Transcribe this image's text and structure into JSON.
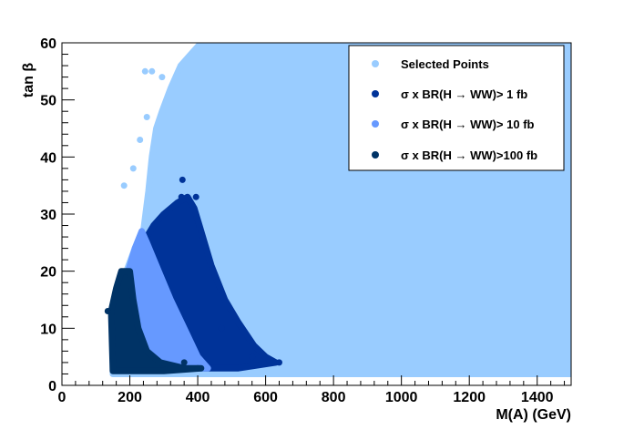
{
  "chart_data": {
    "type": "scatter",
    "xlabel": "M(A) (GeV)",
    "ylabel": "tan β",
    "xlim": [
      0,
      1500
    ],
    "ylim": [
      0,
      60
    ],
    "x_ticks": [
      "0",
      "200",
      "400",
      "600",
      "800",
      "1000",
      "1200",
      "1400"
    ],
    "y_ticks": [
      "0",
      "10",
      "20",
      "30",
      "40",
      "50",
      "60"
    ],
    "grid": false,
    "legend_position": "top-right",
    "series": [
      {
        "name": "Selected Points",
        "color": "#99ccff",
        "outline": [
          [
            150,
            13
          ],
          [
            165,
            18
          ],
          [
            190,
            20
          ],
          [
            215,
            24
          ],
          [
            240,
            27
          ],
          [
            255,
            34
          ],
          [
            265,
            40
          ],
          [
            278,
            45
          ],
          [
            295,
            48
          ],
          [
            320,
            52
          ],
          [
            350,
            56
          ],
          [
            380,
            58
          ],
          [
            410,
            60
          ],
          [
            1500,
            60
          ],
          [
            1500,
            2
          ],
          [
            150,
            2
          ]
        ],
        "extra_points": [
          [
            245,
            55
          ],
          [
            265,
            55
          ],
          [
            183,
            35
          ],
          [
            210,
            38
          ],
          [
            230,
            43
          ],
          [
            250,
            47
          ],
          [
            295,
            54
          ]
        ]
      },
      {
        "name": "σ x BR(H → WW)>  1 fb",
        "color": "#003399",
        "outline": [
          [
            240,
            25
          ],
          [
            270,
            28
          ],
          [
            300,
            30
          ],
          [
            340,
            32
          ],
          [
            370,
            33
          ],
          [
            390,
            31
          ],
          [
            410,
            27
          ],
          [
            440,
            21
          ],
          [
            480,
            15
          ],
          [
            520,
            11
          ],
          [
            565,
            7
          ],
          [
            600,
            5
          ],
          [
            630,
            4
          ],
          [
            520,
            3
          ],
          [
            420,
            3
          ],
          [
            330,
            3
          ],
          [
            290,
            10
          ],
          [
            260,
            18
          ],
          [
            240,
            22
          ]
        ],
        "extra_points": [
          [
            355,
            36
          ],
          [
            352,
            33
          ],
          [
            395,
            33
          ],
          [
            470,
            10
          ],
          [
            560,
            5
          ],
          [
            640,
            4
          ]
        ]
      },
      {
        "name": "σ x BR(H → WW)> 10 fb",
        "color": "#6699ff",
        "outline": [
          [
            175,
            17
          ],
          [
            195,
            20
          ],
          [
            215,
            24
          ],
          [
            235,
            27
          ],
          [
            250,
            25
          ],
          [
            285,
            20
          ],
          [
            320,
            15
          ],
          [
            360,
            10
          ],
          [
            400,
            5
          ],
          [
            430,
            3
          ],
          [
            250,
            3
          ],
          [
            200,
            10
          ]
        ]
      },
      {
        "name": "σ x BR(H → WW)>100 fb",
        "color": "#003366",
        "outline": [
          [
            145,
            13
          ],
          [
            160,
            17
          ],
          [
            175,
            20
          ],
          [
            200,
            20
          ],
          [
            210,
            15
          ],
          [
            225,
            10
          ],
          [
            250,
            6
          ],
          [
            290,
            4
          ],
          [
            360,
            3
          ],
          [
            410,
            3
          ],
          [
            300,
            2.5
          ],
          [
            200,
            2.5
          ],
          [
            150,
            2.5
          ]
        ],
        "extra_points": [
          [
            135,
            13
          ],
          [
            360,
            4
          ],
          [
            400,
            3
          ]
        ]
      }
    ]
  }
}
